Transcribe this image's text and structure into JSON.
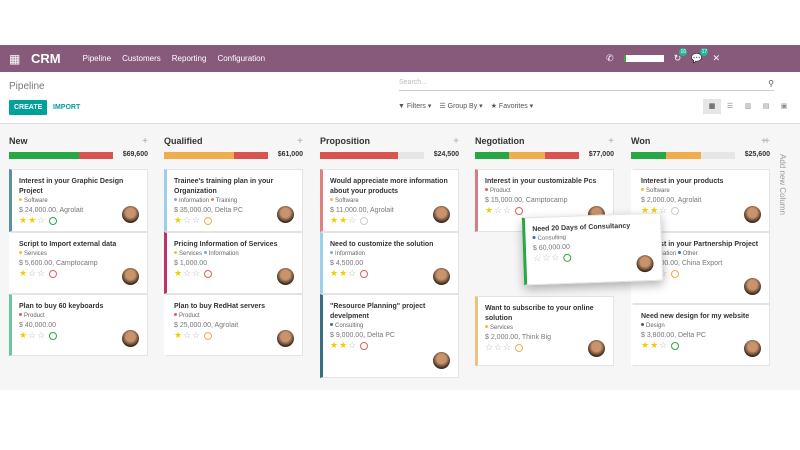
{
  "nav": {
    "app": "CRM",
    "menus": [
      "Pipeline",
      "Customers",
      "Reporting",
      "Configuration"
    ],
    "badge1": "16",
    "badge2": "17"
  },
  "control": {
    "title": "Pipeline",
    "create": "CREATE",
    "import": "IMPORT",
    "search_placeholder": "Search...",
    "filters": "Filters",
    "group_by": "Group By",
    "favorites": "Favorites"
  },
  "add_column": "Add new Column",
  "colors": {
    "green": "#28a745",
    "orange": "#f0ad4e",
    "red": "#d9534f",
    "purple": "#875a7b"
  },
  "columns": [
    {
      "name": "New",
      "total": "$69,600",
      "progress": {
        "green": 0.67,
        "orange": 0,
        "red": 0.33
      },
      "cards": [
        {
          "title": "Interest in your Graphic Design Project",
          "tags": [
            {
              "l": "Software",
              "c": "#f0c040"
            }
          ],
          "value": "$ 24,000.00, Agrolait",
          "stars": 2,
          "activity": "green",
          "border": "#5a8fa8"
        },
        {
          "title": "Script to Import external data",
          "tags": [
            {
              "l": "Services",
              "c": "#f0c040"
            }
          ],
          "value": "$ 5,600.00, Camptocamp",
          "stars": 1,
          "activity": "red",
          "border": "transparent"
        },
        {
          "title": "Plan to buy 60 keyboards",
          "tags": [
            {
              "l": "Product",
              "c": "#e06060"
            }
          ],
          "value": "$ 40,000.00",
          "stars": 1,
          "activity": "green",
          "border": "#6cc4a0"
        }
      ]
    },
    {
      "name": "Qualified",
      "total": "$61,000",
      "progress": {
        "green": 0,
        "orange": 0.67,
        "red": 0.33
      },
      "cards": [
        {
          "title": "Trainee's training plan in your Organization",
          "tags": [
            {
              "l": "Information",
              "c": "#7aaed6"
            },
            {
              "l": "Training",
              "c": "#e08060"
            }
          ],
          "value": "$ 35,000.00, Delta PC",
          "stars": 1,
          "activity": "orange",
          "border": "#9cd0e8"
        },
        {
          "title": "Pricing Information of Services",
          "tags": [
            {
              "l": "Services",
              "c": "#f0c040"
            },
            {
              "l": "Information",
              "c": "#7aaed6"
            }
          ],
          "value": "$ 1,000.00",
          "stars": 1,
          "activity": "red",
          "border": "#c0306a"
        },
        {
          "title": "Plan to buy RedHat servers",
          "tags": [
            {
              "l": "Product",
              "c": "#e06060"
            }
          ],
          "value": "$ 25,000.00, Agrolait",
          "stars": 1,
          "activity": "orange",
          "border": "transparent"
        }
      ]
    },
    {
      "name": "Proposition",
      "total": "$24,500",
      "progress": {
        "green": 0,
        "orange": 0,
        "red": 0.75
      },
      "cards": [
        {
          "title": "Would appreciate more information about your products",
          "tags": [
            {
              "l": "Software",
              "c": "#f0c040"
            }
          ],
          "value": "$ 11,000.00, Agrolait",
          "stars": 2,
          "activity": "grey",
          "border": "#e08080"
        },
        {
          "title": "Need to customize the solution",
          "tags": [
            {
              "l": "Information",
              "c": "#7aaed6"
            }
          ],
          "value": "$ 4,500.00",
          "stars": 2,
          "activity": "red",
          "border": "#9cd0e8"
        },
        {
          "title": "\"Resource Planning\" project develpment",
          "tags": [
            {
              "l": "Consulting",
              "c": "#3a6fa0"
            }
          ],
          "value": "$ 9,000.00, Delta PC",
          "stars": 2,
          "activity": "red",
          "border": "#3a6f80"
        }
      ]
    },
    {
      "name": "Negotiation",
      "total": "$77,000",
      "progress": {
        "green": 0.33,
        "orange": 0.34,
        "red": 0.33
      },
      "cards": [
        {
          "title": "Interest in your customizable Pcs",
          "tags": [
            {
              "l": "Product",
              "c": "#e06060"
            }
          ],
          "value": "$ 15,000.00, Camptocamp",
          "stars": 1,
          "activity": "red",
          "border": "#d08080"
        },
        {
          "title": "Want to subscribe to your online solution",
          "tags": [
            {
              "l": "Services",
              "c": "#f0c040"
            }
          ],
          "value": "$ 2,000.00, Think Big",
          "stars": 0,
          "activity": "orange",
          "border": "#f0c080"
        }
      ]
    },
    {
      "name": "Won",
      "total": "$25,600",
      "progress": {
        "green": 0.34,
        "orange": 0.33,
        "red": 0
      },
      "cards": [
        {
          "title": "Interest in your products",
          "tags": [
            {
              "l": "Software",
              "c": "#f0c040"
            }
          ],
          "value": "$ 2,000.00, Agrolait",
          "stars": 2,
          "activity": "grey",
          "border": "transparent"
        },
        {
          "title": "Interest in your Partnership Project",
          "tags": [
            {
              "l": "Information",
              "c": "#7aaed6"
            },
            {
              "l": "Other",
              "c": "#3a6fa0"
            }
          ],
          "value": "$ 19,800.00, China Export",
          "stars": 2,
          "activity": "orange",
          "border": "transparent"
        },
        {
          "title": "Need new design for my website",
          "tags": [
            {
              "l": "Design",
              "c": "#555"
            }
          ],
          "value": "$ 3,800.00, Delta PC",
          "stars": 2,
          "activity": "green",
          "border": "transparent"
        }
      ]
    }
  ],
  "dragged_card": {
    "title": "Need 20 Days of Consultancy",
    "tags": [
      {
        "l": "Consulting",
        "c": "#3a6fa0"
      }
    ],
    "value": "$ 60,000.00",
    "stars": 0,
    "activity": "green",
    "border": "#28a745"
  }
}
